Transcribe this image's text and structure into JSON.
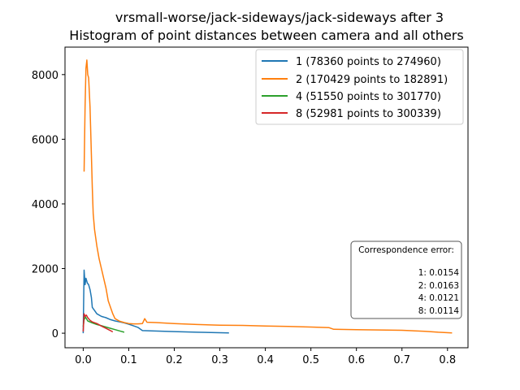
{
  "chart_data": {
    "type": "line",
    "title_lines": [
      "vrsmall-worse/jack-sideways/jack-sideways after 3",
      "Histogram of point distances between camera and all others"
    ],
    "xlabel": "",
    "ylabel": "",
    "xlim": [
      -0.04,
      0.845
    ],
    "ylim": [
      -450,
      8850
    ],
    "x_ticks": [
      0.0,
      0.1,
      0.2,
      0.3,
      0.4,
      0.5,
      0.6,
      0.7,
      0.8
    ],
    "x_tick_labels": [
      "0.0",
      "0.1",
      "0.2",
      "0.3",
      "0.4",
      "0.5",
      "0.6",
      "0.7",
      "0.8"
    ],
    "y_ticks": [
      0,
      2000,
      4000,
      6000,
      8000
    ],
    "y_tick_labels": [
      "0",
      "2000",
      "4000",
      "6000",
      "8000"
    ],
    "grid": false,
    "legend_position": "top-right",
    "series": [
      {
        "name": "1 (78360 points to 274960)",
        "color": "#1f77b4",
        "points": [
          [
            0.0,
            0
          ],
          [
            0.002,
            1950
          ],
          [
            0.004,
            1500
          ],
          [
            0.006,
            1700
          ],
          [
            0.009,
            1550
          ],
          [
            0.012,
            1500
          ],
          [
            0.015,
            1350
          ],
          [
            0.018,
            1100
          ],
          [
            0.02,
            800
          ],
          [
            0.025,
            700
          ],
          [
            0.03,
            600
          ],
          [
            0.04,
            520
          ],
          [
            0.05,
            480
          ],
          [
            0.06,
            420
          ],
          [
            0.07,
            380
          ],
          [
            0.08,
            350
          ],
          [
            0.09,
            320
          ],
          [
            0.1,
            280
          ],
          [
            0.11,
            230
          ],
          [
            0.12,
            180
          ],
          [
            0.13,
            80
          ],
          [
            0.15,
            70
          ],
          [
            0.2,
            50
          ],
          [
            0.25,
            30
          ],
          [
            0.3,
            15
          ],
          [
            0.32,
            10
          ]
        ]
      },
      {
        "name": "2 (170429 points to 182891)",
        "color": "#ff7f0e",
        "points": [
          [
            0.002,
            5000
          ],
          [
            0.004,
            7000
          ],
          [
            0.006,
            8200
          ],
          [
            0.008,
            8450
          ],
          [
            0.01,
            8000
          ],
          [
            0.012,
            7900
          ],
          [
            0.015,
            7000
          ],
          [
            0.018,
            5500
          ],
          [
            0.02,
            4500
          ],
          [
            0.022,
            3700
          ],
          [
            0.025,
            3200
          ],
          [
            0.03,
            2700
          ],
          [
            0.035,
            2300
          ],
          [
            0.04,
            2000
          ],
          [
            0.045,
            1700
          ],
          [
            0.05,
            1400
          ],
          [
            0.055,
            1000
          ],
          [
            0.06,
            800
          ],
          [
            0.065,
            600
          ],
          [
            0.07,
            450
          ],
          [
            0.08,
            370
          ],
          [
            0.09,
            330
          ],
          [
            0.1,
            300
          ],
          [
            0.11,
            290
          ],
          [
            0.12,
            290
          ],
          [
            0.13,
            300
          ],
          [
            0.135,
            450
          ],
          [
            0.14,
            340
          ],
          [
            0.16,
            330
          ],
          [
            0.2,
            300
          ],
          [
            0.25,
            270
          ],
          [
            0.3,
            250
          ],
          [
            0.35,
            240
          ],
          [
            0.4,
            220
          ],
          [
            0.45,
            210
          ],
          [
            0.5,
            190
          ],
          [
            0.54,
            170
          ],
          [
            0.55,
            120
          ],
          [
            0.6,
            110
          ],
          [
            0.65,
            100
          ],
          [
            0.7,
            90
          ],
          [
            0.75,
            60
          ],
          [
            0.78,
            30
          ],
          [
            0.81,
            10
          ]
        ]
      },
      {
        "name": "4 (51550 points to 301770)",
        "color": "#2ca02c",
        "points": [
          [
            0.0,
            200
          ],
          [
            0.002,
            420
          ],
          [
            0.005,
            500
          ],
          [
            0.01,
            380
          ],
          [
            0.02,
            320
          ],
          [
            0.03,
            270
          ],
          [
            0.04,
            230
          ],
          [
            0.05,
            190
          ],
          [
            0.06,
            150
          ],
          [
            0.07,
            110
          ],
          [
            0.08,
            70
          ],
          [
            0.09,
            30
          ]
        ]
      },
      {
        "name": "8 (52981 points to 300339)",
        "color": "#d62728",
        "points": [
          [
            0.0,
            50
          ],
          [
            0.002,
            600
          ],
          [
            0.004,
            520
          ],
          [
            0.007,
            560
          ],
          [
            0.01,
            480
          ],
          [
            0.015,
            400
          ],
          [
            0.02,
            350
          ],
          [
            0.03,
            300
          ],
          [
            0.04,
            220
          ],
          [
            0.05,
            150
          ],
          [
            0.06,
            80
          ],
          [
            0.065,
            40
          ]
        ]
      }
    ],
    "annotation": {
      "title": "Correspondence error:",
      "lines": [
        "1: 0.0154",
        "2: 0.0163",
        "4: 0.0121",
        "8: 0.0114"
      ]
    }
  }
}
